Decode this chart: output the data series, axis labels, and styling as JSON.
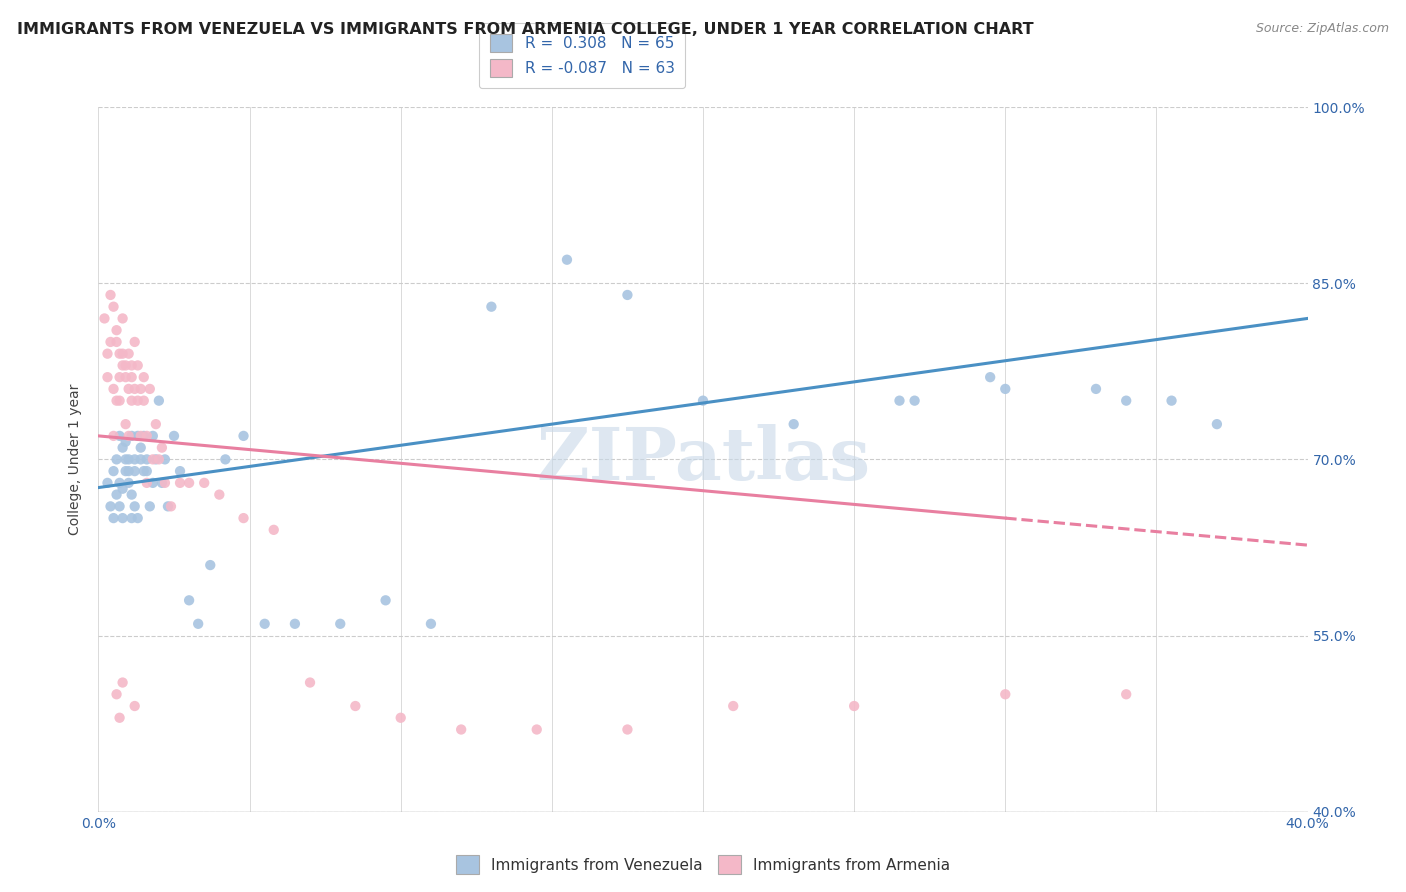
{
  "title": "IMMIGRANTS FROM VENEZUELA VS IMMIGRANTS FROM ARMENIA COLLEGE, UNDER 1 YEAR CORRELATION CHART",
  "source": "Source: ZipAtlas.com",
  "ylabel": "College, Under 1 year",
  "xlim": [
    0.0,
    0.4
  ],
  "ylim": [
    0.4,
    1.0
  ],
  "xticks": [
    0.0,
    0.05,
    0.1,
    0.15,
    0.2,
    0.25,
    0.3,
    0.35,
    0.4
  ],
  "yticks": [
    0.4,
    0.55,
    0.7,
    0.85,
    1.0
  ],
  "ytick_labels": [
    "40.0%",
    "55.0%",
    "70.0%",
    "85.0%",
    "100.0%"
  ],
  "r_venezuela": 0.308,
  "n_venezuela": 65,
  "r_armenia": -0.087,
  "n_armenia": 63,
  "color_venezuela": "#a8c4e0",
  "color_armenia": "#f4b8c8",
  "line_color_venezuela": "#4a90c4",
  "line_color_armenia": "#e87fa0",
  "title_fontsize": 11.5,
  "label_fontsize": 10,
  "tick_fontsize": 10,
  "watermark": "ZIPatlas",
  "watermark_color": "#c8d8e8",
  "background_color": "#ffffff",
  "venezuela_x": [
    0.003,
    0.004,
    0.005,
    0.005,
    0.006,
    0.006,
    0.007,
    0.007,
    0.007,
    0.008,
    0.008,
    0.008,
    0.009,
    0.009,
    0.009,
    0.01,
    0.01,
    0.01,
    0.011,
    0.011,
    0.011,
    0.012,
    0.012,
    0.012,
    0.013,
    0.013,
    0.014,
    0.014,
    0.015,
    0.015,
    0.016,
    0.016,
    0.017,
    0.018,
    0.018,
    0.019,
    0.02,
    0.021,
    0.022,
    0.023,
    0.025,
    0.027,
    0.03,
    0.033,
    0.037,
    0.042,
    0.048,
    0.055,
    0.065,
    0.08,
    0.095,
    0.11,
    0.13,
    0.155,
    0.175,
    0.2,
    0.23,
    0.265,
    0.3,
    0.34,
    0.37,
    0.355,
    0.33,
    0.295,
    0.27
  ],
  "venezuela_y": [
    0.68,
    0.66,
    0.69,
    0.65,
    0.7,
    0.67,
    0.68,
    0.72,
    0.66,
    0.71,
    0.65,
    0.675,
    0.69,
    0.7,
    0.715,
    0.68,
    0.7,
    0.69,
    0.65,
    0.72,
    0.67,
    0.7,
    0.66,
    0.69,
    0.72,
    0.65,
    0.7,
    0.71,
    0.69,
    0.72,
    0.7,
    0.69,
    0.66,
    0.72,
    0.68,
    0.7,
    0.75,
    0.68,
    0.7,
    0.66,
    0.72,
    0.69,
    0.58,
    0.56,
    0.61,
    0.7,
    0.72,
    0.56,
    0.56,
    0.56,
    0.58,
    0.56,
    0.83,
    0.87,
    0.84,
    0.75,
    0.73,
    0.75,
    0.76,
    0.75,
    0.73,
    0.75,
    0.76,
    0.77,
    0.75
  ],
  "armenia_x": [
    0.002,
    0.003,
    0.003,
    0.004,
    0.004,
    0.005,
    0.005,
    0.005,
    0.006,
    0.006,
    0.006,
    0.007,
    0.007,
    0.007,
    0.008,
    0.008,
    0.008,
    0.009,
    0.009,
    0.009,
    0.01,
    0.01,
    0.01,
    0.011,
    0.011,
    0.011,
    0.012,
    0.012,
    0.013,
    0.013,
    0.014,
    0.014,
    0.015,
    0.015,
    0.016,
    0.016,
    0.017,
    0.018,
    0.019,
    0.02,
    0.021,
    0.022,
    0.024,
    0.027,
    0.03,
    0.035,
    0.04,
    0.048,
    0.058,
    0.07,
    0.085,
    0.1,
    0.12,
    0.145,
    0.175,
    0.21,
    0.25,
    0.3,
    0.34,
    0.006,
    0.007,
    0.008,
    0.012
  ],
  "armenia_y": [
    0.82,
    0.79,
    0.77,
    0.84,
    0.8,
    0.83,
    0.72,
    0.76,
    0.8,
    0.75,
    0.81,
    0.77,
    0.79,
    0.75,
    0.78,
    0.79,
    0.82,
    0.77,
    0.78,
    0.73,
    0.76,
    0.79,
    0.72,
    0.75,
    0.78,
    0.77,
    0.8,
    0.76,
    0.75,
    0.78,
    0.72,
    0.76,
    0.77,
    0.75,
    0.72,
    0.68,
    0.76,
    0.7,
    0.73,
    0.7,
    0.71,
    0.68,
    0.66,
    0.68,
    0.68,
    0.68,
    0.67,
    0.65,
    0.64,
    0.51,
    0.49,
    0.48,
    0.47,
    0.47,
    0.47,
    0.49,
    0.49,
    0.5,
    0.5,
    0.5,
    0.48,
    0.51,
    0.49
  ],
  "trend_ven_x0": 0.0,
  "trend_ven_y0": 0.676,
  "trend_ven_x1": 0.4,
  "trend_ven_y1": 0.82,
  "trend_arm_solid_x0": 0.0,
  "trend_arm_solid_y0": 0.72,
  "trend_arm_solid_x1": 0.3,
  "trend_arm_solid_y1": 0.65,
  "trend_arm_dash_x0": 0.3,
  "trend_arm_dash_y0": 0.65,
  "trend_arm_dash_x1": 0.4,
  "trend_arm_dash_y1": 0.627
}
